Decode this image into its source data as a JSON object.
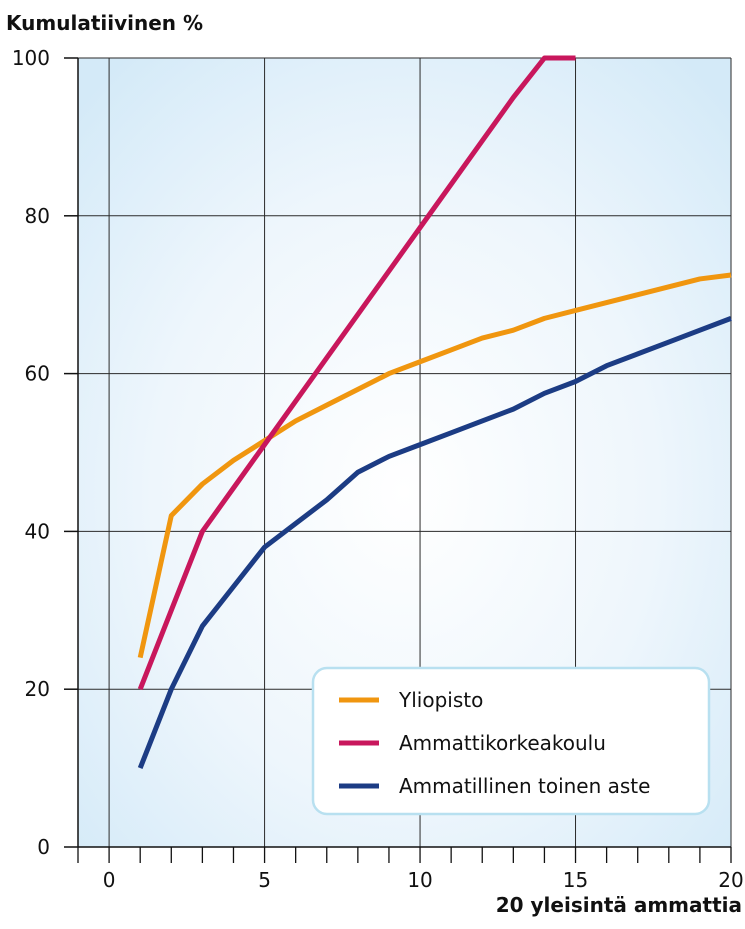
{
  "chart_data": {
    "type": "line",
    "ylabel": "Kumulatiivinen %",
    "xlabel": "20 yleisintä ammattia",
    "xlim": [
      -1,
      20
    ],
    "ylim": [
      0,
      100
    ],
    "x_ticks": [
      0,
      5,
      10,
      15,
      20
    ],
    "y_ticks": [
      0,
      20,
      40,
      60,
      80,
      100
    ],
    "grid": true,
    "legend_position": "bottom-right",
    "series": [
      {
        "name": "Yliopisto",
        "color": "#f0960f",
        "x": [
          1,
          2,
          3,
          4,
          5,
          6,
          7,
          8,
          9,
          10,
          11,
          12,
          13,
          14,
          15,
          16,
          17,
          18,
          19,
          20
        ],
        "y": [
          24,
          42,
          46,
          49,
          51.5,
          54,
          56,
          58,
          60,
          61.5,
          63,
          64.5,
          65.5,
          67,
          68,
          69,
          70,
          71,
          72,
          72.5
        ]
      },
      {
        "name": "Ammattikorkeakoulu",
        "color": "#c8175c",
        "x": [
          1,
          2,
          3,
          4,
          5,
          6,
          7,
          8,
          9,
          10,
          11,
          12,
          13,
          14,
          15
        ],
        "y": [
          20,
          30,
          40,
          45.5,
          51,
          56.5,
          62,
          67.5,
          73,
          78.5,
          84,
          89.5,
          95,
          100,
          100
        ]
      },
      {
        "name": "Ammatillinen toinen aste",
        "color": "#1c3c84",
        "x": [
          1,
          2,
          3,
          4,
          5,
          6,
          7,
          8,
          9,
          10,
          11,
          12,
          13,
          14,
          15,
          16,
          17,
          18,
          19,
          20
        ],
        "y": [
          10,
          20,
          28,
          33,
          38,
          41,
          44,
          47.5,
          49.5,
          51,
          52.5,
          54,
          55.5,
          57.5,
          59,
          61,
          62.5,
          64,
          65.5,
          67
        ]
      }
    ]
  }
}
